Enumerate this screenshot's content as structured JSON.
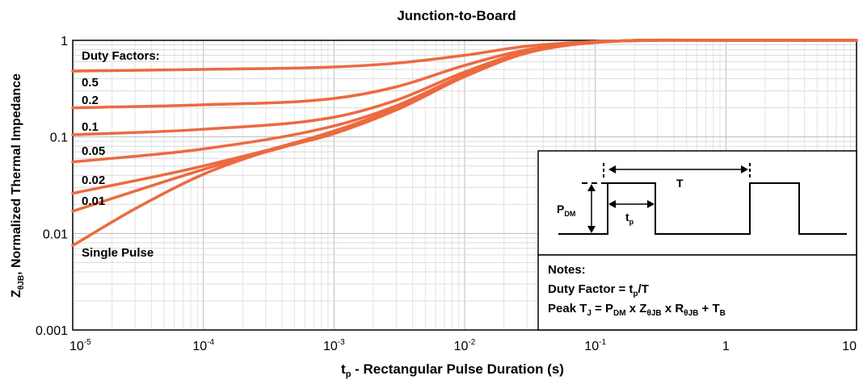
{
  "chart_data": {
    "type": "line",
    "title": "Junction-to-Board",
    "xlabel": {
      "main": "t",
      "sub": "p",
      "rest": " - Rectangular Pulse Duration (s)"
    },
    "ylabel": {
      "main": "Z",
      "sub": "θJB",
      "rest": ", Normalized Thermal Impedance"
    },
    "x_scale": "log",
    "y_scale": "log",
    "xlim": [
      1e-05,
      10
    ],
    "ylim": [
      0.001,
      1
    ],
    "grid": true,
    "line_color": "#ec6a3f",
    "x_ticks": [
      {
        "value": 1e-05,
        "base": "10",
        "exp": "-5"
      },
      {
        "value": 0.0001,
        "base": "10",
        "exp": "-4"
      },
      {
        "value": 0.001,
        "base": "10",
        "exp": "-3"
      },
      {
        "value": 0.01,
        "base": "10",
        "exp": "-2"
      },
      {
        "value": 0.1,
        "base": "10",
        "exp": "-1"
      },
      {
        "value": 1,
        "base": "1",
        "exp": ""
      },
      {
        "value": 10,
        "base": "10",
        "exp": ""
      }
    ],
    "y_ticks": [
      {
        "value": 0.001,
        "label": "0.001"
      },
      {
        "value": 0.01,
        "label": "0.01"
      },
      {
        "value": 0.1,
        "label": "0.1"
      },
      {
        "value": 1,
        "label": "1"
      }
    ],
    "legend_title": "Duty Factors:",
    "series": [
      {
        "name": "0.5",
        "x": [
          1e-05,
          0.0001,
          0.001,
          0.003,
          0.01,
          0.03,
          0.1,
          1,
          10
        ],
        "y": [
          0.48,
          0.5,
          0.53,
          0.58,
          0.7,
          0.87,
          0.97,
          1,
          1
        ]
      },
      {
        "name": "0.2",
        "x": [
          1e-05,
          0.0001,
          0.001,
          0.003,
          0.01,
          0.03,
          0.1,
          1,
          10
        ],
        "y": [
          0.2,
          0.215,
          0.25,
          0.33,
          0.55,
          0.8,
          0.96,
          1,
          1
        ]
      },
      {
        "name": "0.1",
        "x": [
          1e-05,
          0.0001,
          0.001,
          0.003,
          0.01,
          0.03,
          0.1,
          1,
          10
        ],
        "y": [
          0.105,
          0.12,
          0.16,
          0.24,
          0.47,
          0.77,
          0.955,
          1,
          1
        ]
      },
      {
        "name": "0.05",
        "x": [
          1e-05,
          0.0001,
          0.001,
          0.003,
          0.01,
          0.03,
          0.1,
          1,
          10
        ],
        "y": [
          0.055,
          0.075,
          0.13,
          0.21,
          0.44,
          0.76,
          0.95,
          1,
          1
        ]
      },
      {
        "name": "0.02",
        "x": [
          1e-05,
          0.0001,
          0.001,
          0.003,
          0.01,
          0.03,
          0.1,
          1,
          10
        ],
        "y": [
          0.026,
          0.05,
          0.115,
          0.2,
          0.43,
          0.75,
          0.95,
          1,
          1
        ]
      },
      {
        "name": "0.01",
        "x": [
          1e-05,
          0.0001,
          0.001,
          0.003,
          0.01,
          0.03,
          0.1,
          1,
          10
        ],
        "y": [
          0.017,
          0.046,
          0.112,
          0.195,
          0.425,
          0.75,
          0.95,
          1,
          1
        ]
      },
      {
        "name": "Single Pulse",
        "x": [
          1e-05,
          3e-05,
          0.0001,
          0.0003,
          0.001,
          0.003,
          0.01,
          0.03,
          0.1,
          1,
          10
        ],
        "y": [
          0.0075,
          0.018,
          0.041,
          0.07,
          0.108,
          0.19,
          0.42,
          0.74,
          0.95,
          1,
          1
        ]
      }
    ],
    "inset": {
      "pdm": {
        "main": "P",
        "sub": "DM"
      },
      "tp": {
        "main": "t",
        "sub": "p"
      },
      "period": "T"
    },
    "notes": {
      "heading": "Notes:",
      "line1": {
        "a": "Duty Factor = t",
        "sub": "p",
        "b": "/T"
      },
      "line2": {
        "a": "Peak T",
        "s1": "J",
        "b": " = P",
        "s2": "DM",
        "c": " x Z",
        "s3": "θJB",
        "d": " x R",
        "s4": "θJB",
        "e": " + T",
        "s5": "B"
      }
    }
  }
}
